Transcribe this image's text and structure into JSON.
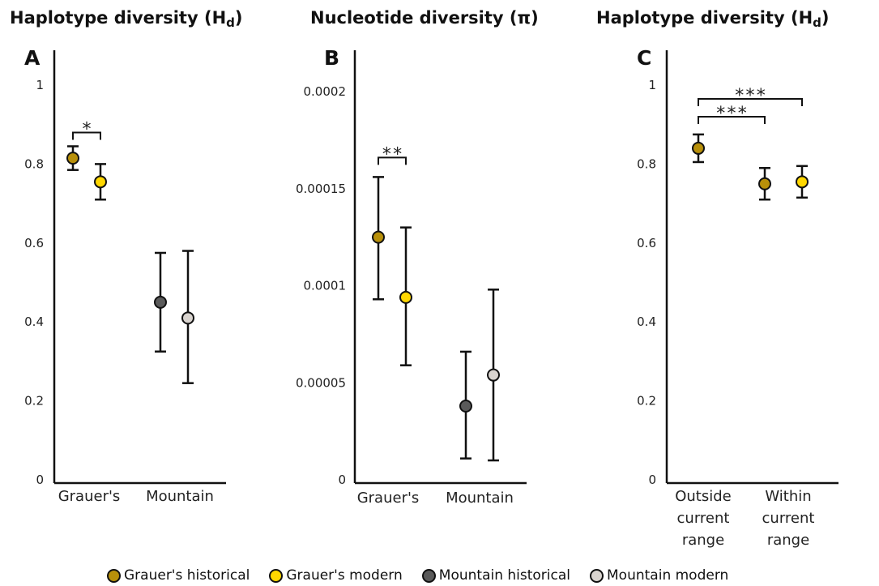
{
  "titles": {
    "a_main": "Haplotype diversity (H",
    "a_sub": "d",
    "a_close": ")",
    "b": "Nucleotide diversity (π)",
    "c_main": "Haplotype diversity (H",
    "c_sub": "d",
    "c_close": ")"
  },
  "legend": [
    {
      "label": "Grauer's historical",
      "color": "#b8900a"
    },
    {
      "label": "Grauer's modern",
      "color": "#ffd700"
    },
    {
      "label": "Mountain historical",
      "color": "#5a5a5a"
    },
    {
      "label": "Mountain modern",
      "color": "#d9d4cf"
    }
  ],
  "chart_data": [
    {
      "type": "scatter",
      "panel_label": "A",
      "ylim": [
        0,
        1
      ],
      "y_ticks": [
        "0",
        "0.2",
        "0.4",
        "0.6",
        "0.8",
        "1"
      ],
      "categories": [
        "Grauer's",
        "Mountain"
      ],
      "series": [
        {
          "name": "Grauer's historical",
          "category": "Grauer's",
          "color": "#b8900a",
          "y": 0.815,
          "low": 0.785,
          "high": 0.845
        },
        {
          "name": "Grauer's modern",
          "category": "Grauer's",
          "color": "#ffd700",
          "y": 0.755,
          "low": 0.71,
          "high": 0.8
        },
        {
          "name": "Mountain historical",
          "category": "Mountain",
          "color": "#5a5a5a",
          "y": 0.45,
          "low": 0.325,
          "high": 0.575
        },
        {
          "name": "Mountain modern",
          "category": "Mountain",
          "color": "#d9d4cf",
          "y": 0.41,
          "low": 0.245,
          "high": 0.58
        }
      ],
      "significance": [
        {
          "label": "*",
          "from": 0,
          "to": 1,
          "y": 0.88
        }
      ]
    },
    {
      "type": "scatter",
      "panel_label": "B",
      "ylim": [
        0,
        0.00024
      ],
      "y_ticks": [
        "0",
        "0.00005",
        "0.0001",
        "0.00015",
        "0.0002"
      ],
      "categories": [
        "Grauer's",
        "Mountain"
      ],
      "series": [
        {
          "name": "Grauer's historical",
          "category": "Grauer's",
          "color": "#b8900a",
          "y": 0.000125,
          "low": 9.3e-05,
          "high": 0.000156
        },
        {
          "name": "Grauer's modern",
          "category": "Grauer's",
          "color": "#ffd700",
          "y": 9.4e-05,
          "low": 5.9e-05,
          "high": 0.00013
        },
        {
          "name": "Mountain historical",
          "category": "Mountain",
          "color": "#5a5a5a",
          "y": 3.8e-05,
          "low": 1.1e-05,
          "high": 6.6e-05
        },
        {
          "name": "Mountain modern",
          "category": "Mountain",
          "color": "#d9d4cf",
          "y": 5.4e-05,
          "low": 1e-05,
          "high": 9.8e-05
        }
      ],
      "significance": [
        {
          "label": "**",
          "from": 0,
          "to": 1,
          "y": 0.000166
        }
      ]
    },
    {
      "type": "scatter",
      "panel_label": "C",
      "ylim": [
        0,
        1
      ],
      "y_ticks": [
        "0",
        "0.2",
        "0.4",
        "0.6",
        "0.8",
        "1"
      ],
      "categories": [
        "Outside current range",
        "Within current range"
      ],
      "category_lines": [
        [
          "Outside",
          "current",
          "range"
        ],
        [
          "Within",
          "current",
          "range"
        ]
      ],
      "series": [
        {
          "name": "Grauer's historical",
          "category": "Outside current range",
          "color": "#b8900a",
          "y": 0.84,
          "low": 0.805,
          "high": 0.875
        },
        {
          "name": "Grauer's historical",
          "category": "Within current range",
          "color": "#b8900a",
          "y": 0.75,
          "low": 0.71,
          "high": 0.79
        },
        {
          "name": "Grauer's modern",
          "category": "Within current range",
          "color": "#ffd700",
          "y": 0.755,
          "low": 0.715,
          "high": 0.795
        }
      ],
      "significance": [
        {
          "label": "***",
          "from": 0,
          "to": 1,
          "y": 0.92
        },
        {
          "label": "***",
          "from": 0,
          "to": 2,
          "y": 0.965
        }
      ]
    }
  ]
}
